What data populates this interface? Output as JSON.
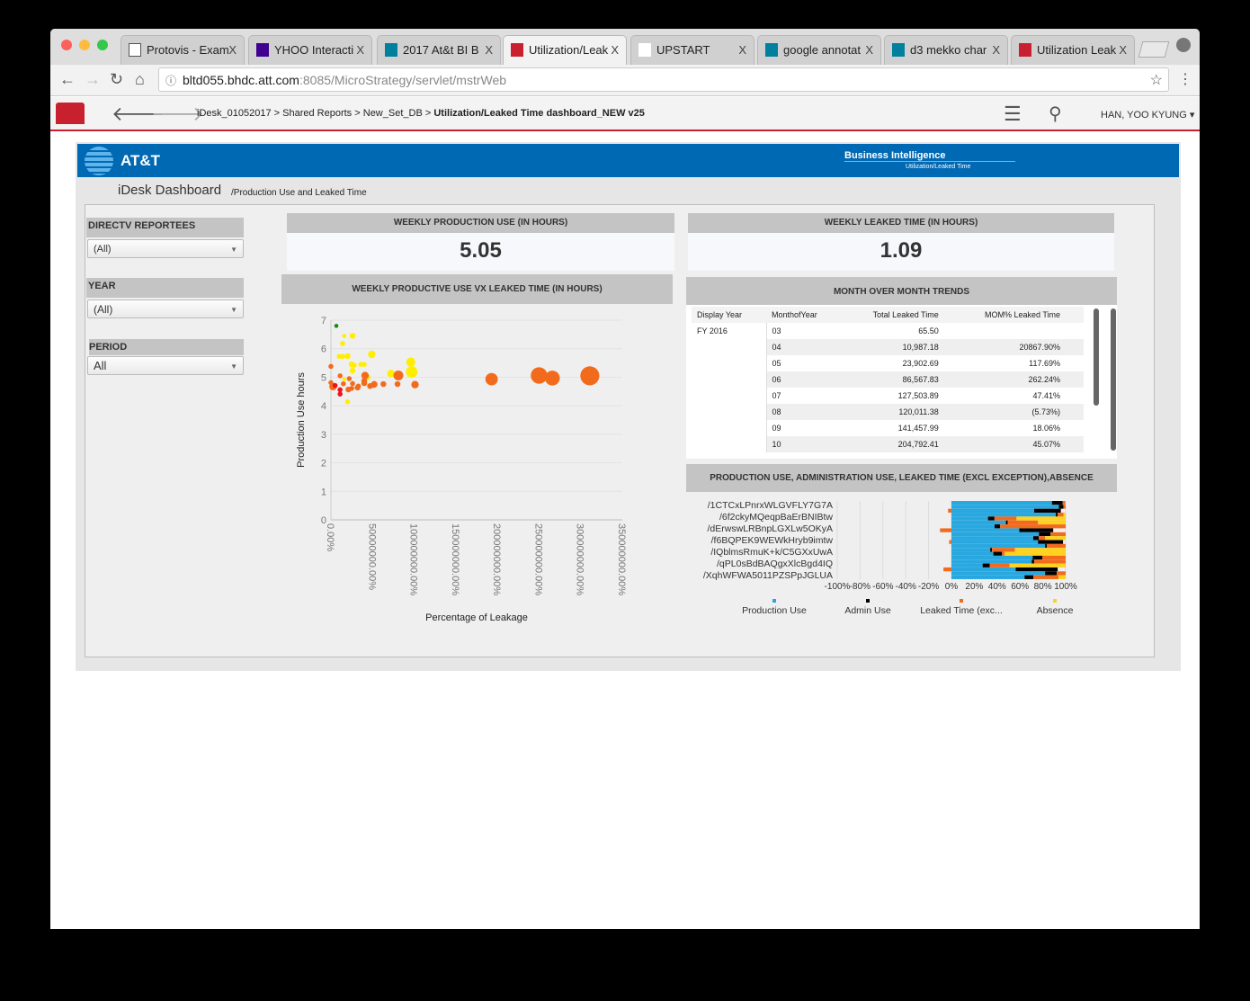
{
  "browser": {
    "tabs": [
      {
        "label": "Protovis - Exam",
        "icon": "page-icon",
        "active": false
      },
      {
        "label": "YHOO Interacti",
        "icon": "yahoo-icon",
        "active": false
      },
      {
        "label": "2017 At&t BI B",
        "icon": "bing-icon",
        "active": false
      },
      {
        "label": "Utilization/Leak",
        "icon": "microstrategy-icon",
        "active": true
      },
      {
        "label": "UPSTART",
        "icon": "upstart-icon",
        "active": false
      },
      {
        "label": "google annotat",
        "icon": "bing-icon",
        "active": false
      },
      {
        "label": "d3 mekko char",
        "icon": "bing-icon",
        "active": false
      },
      {
        "label": "Utilization Leak",
        "icon": "microstrategy-icon",
        "active": false
      }
    ],
    "close_glyph": "X",
    "url_host": "bltd055.bhdc.att.com",
    "url_rest": ":8085/MicroStrategy/servlet/mstrWeb"
  },
  "toolbar": {
    "breadcrumb": [
      "iDesk_01052017",
      "Shared Reports",
      "New_Set_DB"
    ],
    "separator": ">",
    "current": "Utilization/Leaked Time dashboard_NEW v25",
    "user": "HAN, YOO KYUNG"
  },
  "banner": {
    "brand": "AT&T",
    "title": "Business Intelligence",
    "subtitle": "Utilization/Leaked Time"
  },
  "page": {
    "title": "iDesk Dashboard",
    "subtitle": "/Production Use and Leaked Time"
  },
  "filters": [
    {
      "label": "DIRECTV REPORTEES",
      "value": "(All)"
    },
    {
      "label": "YEAR",
      "value": "(All)"
    },
    {
      "label": "PERIOD",
      "value": "All"
    }
  ],
  "kpis": [
    {
      "label": "WEEKLY PRODUCTION USE (IN HOURS)",
      "value": "5.05"
    },
    {
      "label": "WEEKLY LEAKED TIME (IN HOURS)",
      "value": "1.09"
    }
  ],
  "colors": {
    "production": "#29a8e0",
    "admin": "#000000",
    "leaked": "#f26b1d",
    "absence": "#ffd21f",
    "banner": "#0069b4",
    "accent": "#c8202f"
  },
  "trends": {
    "title": "MONTH OVER MONTH TRENDS",
    "columns": [
      "Display Year",
      "MonthofYear",
      "Total Leaked Time",
      "MOM% Leaked Time"
    ],
    "year": "FY 2016",
    "rows": [
      [
        "03",
        "65.50",
        ""
      ],
      [
        "04",
        "10,987.18",
        "20867.90%"
      ],
      [
        "05",
        "23,902.69",
        "117.69%"
      ],
      [
        "06",
        "86,567.83",
        "262.24%"
      ],
      [
        "07",
        "127,503.89",
        "47.41%"
      ],
      [
        "08",
        "120,011.38",
        "(5.73%)"
      ],
      [
        "09",
        "141,457.99",
        "18.06%"
      ],
      [
        "10",
        "204,792.41",
        "45.07%"
      ]
    ]
  },
  "chart_data": [
    {
      "type": "scatter",
      "title": "WEEKLY PRODUCTIVE USE VX LEAKED TIME (IN HOURS)",
      "xlabel": "Percentage of Leakage",
      "ylabel": "Production Use hours",
      "xlim": [
        0,
        350000000
      ],
      "ylim": [
        0,
        7
      ],
      "xticks": [
        "0.00%",
        "50000000.00%",
        "100000000.00%",
        "150000000.00%",
        "200000000.00%",
        "250000000.00%",
        "300000000.00%",
        "350000000.00%"
      ],
      "yticks": [
        "0",
        "1",
        "2",
        "3",
        "4",
        "5",
        "6",
        "7"
      ],
      "grid": true,
      "points": [
        {
          "x": 6500000,
          "y": 6.8,
          "size": 1,
          "color": "#1a8a1a"
        },
        {
          "x": 16000000,
          "y": 6.45,
          "size": 1,
          "color": "#ffee00"
        },
        {
          "x": 26000000,
          "y": 6.45,
          "size": 1.4,
          "color": "#ffee00"
        },
        {
          "x": 14000000,
          "y": 6.18,
          "size": 1.2,
          "color": "#ffee00"
        },
        {
          "x": 10000000,
          "y": 5.73,
          "size": 1.2,
          "color": "#ffee00"
        },
        {
          "x": 14000000,
          "y": 5.73,
          "size": 1.2,
          "color": "#ffee00"
        },
        {
          "x": 20000000,
          "y": 5.74,
          "size": 1.4,
          "color": "#ffee00"
        },
        {
          "x": 25000000,
          "y": 5.45,
          "size": 1.4,
          "color": "#ffee00"
        },
        {
          "x": 28000000,
          "y": 5.42,
          "size": 1.2,
          "color": "#ffee00"
        },
        {
          "x": 26000000,
          "y": 5.23,
          "size": 1.4,
          "color": "#ffee00"
        },
        {
          "x": 36000000,
          "y": 5.45,
          "size": 1.2,
          "color": "#ffee00"
        },
        {
          "x": 40000000,
          "y": 5.45,
          "size": 1.2,
          "color": "#ffee00"
        },
        {
          "x": 49000000,
          "y": 5.8,
          "size": 1.8,
          "color": "#ffee00"
        },
        {
          "x": 16000000,
          "y": 4.93,
          "size": 1,
          "color": "#ffee00"
        },
        {
          "x": 20000000,
          "y": 4.14,
          "size": 1.2,
          "color": "#ffee00"
        },
        {
          "x": 44000000,
          "y": 5.0,
          "size": 1.4,
          "color": "#ffee00"
        },
        {
          "x": 72000000,
          "y": 5.13,
          "size": 1.8,
          "color": "#ffee00"
        },
        {
          "x": 96000000,
          "y": 5.53,
          "size": 2.2,
          "color": "#ffee00"
        },
        {
          "x": 97000000,
          "y": 5.19,
          "size": 2.8,
          "color": "#ffee00"
        },
        {
          "x": 0,
          "y": 5.38,
          "size": 1.2,
          "color": "#f26b1d"
        },
        {
          "x": 0,
          "y": 4.81,
          "size": 1.2,
          "color": "#f26b1d"
        },
        {
          "x": 2500000,
          "y": 4.67,
          "size": 1.8,
          "color": "#f26b1d"
        },
        {
          "x": 11000000,
          "y": 5.05,
          "size": 1.2,
          "color": "#f26b1d"
        },
        {
          "x": 15000000,
          "y": 4.77,
          "size": 1.2,
          "color": "#f26b1d"
        },
        {
          "x": 22000000,
          "y": 4.95,
          "size": 1.2,
          "color": "#f26b1d"
        },
        {
          "x": 21000000,
          "y": 4.57,
          "size": 1.4,
          "color": "#f26b1d"
        },
        {
          "x": 25000000,
          "y": 4.61,
          "size": 1.2,
          "color": "#f26b1d"
        },
        {
          "x": 26000000,
          "y": 4.78,
          "size": 1.2,
          "color": "#f26b1d"
        },
        {
          "x": 32000000,
          "y": 4.64,
          "size": 1.4,
          "color": "#f26b1d"
        },
        {
          "x": 33000000,
          "y": 4.69,
          "size": 1.2,
          "color": "#f26b1d"
        },
        {
          "x": 41000000,
          "y": 5.06,
          "size": 1.8,
          "color": "#f26b1d"
        },
        {
          "x": 40000000,
          "y": 4.87,
          "size": 1.4,
          "color": "#f26b1d"
        },
        {
          "x": 40000000,
          "y": 4.79,
          "size": 1.4,
          "color": "#f26b1d"
        },
        {
          "x": 47000000,
          "y": 4.69,
          "size": 1.4,
          "color": "#f26b1d"
        },
        {
          "x": 51000000,
          "y": 4.73,
          "size": 1.4,
          "color": "#f26b1d"
        },
        {
          "x": 52000000,
          "y": 4.75,
          "size": 1.6,
          "color": "#f26b1d"
        },
        {
          "x": 63000000,
          "y": 4.76,
          "size": 1.4,
          "color": "#f26b1d"
        },
        {
          "x": 80000000,
          "y": 4.76,
          "size": 1.4,
          "color": "#f26b1d"
        },
        {
          "x": 81000000,
          "y": 5.06,
          "size": 2.4,
          "color": "#f26b1d"
        },
        {
          "x": 101000000,
          "y": 4.74,
          "size": 1.8,
          "color": "#f26b1d"
        },
        {
          "x": 193000000,
          "y": 4.93,
          "size": 3,
          "color": "#f26b1d"
        },
        {
          "x": 250000000,
          "y": 5.06,
          "size": 4,
          "color": "#f26b1d"
        },
        {
          "x": 266000000,
          "y": 4.97,
          "size": 3.6,
          "color": "#f26b1d"
        },
        {
          "x": 311000000,
          "y": 5.05,
          "size": 4.6,
          "color": "#f26b1d"
        },
        {
          "x": 5000000,
          "y": 4.71,
          "size": 1.2,
          "color": "#e8151b"
        },
        {
          "x": 11000000,
          "y": 4.56,
          "size": 1.2,
          "color": "#e8151b"
        },
        {
          "x": 11000000,
          "y": 4.41,
          "size": 1.2,
          "color": "#e8151b"
        }
      ]
    },
    {
      "type": "bar",
      "orientation": "horizontal-stacked-percent",
      "title": "PRODUCTION USE, ADMINISTRATION USE, LEAKED TIME (EXCL EXCEPTION),ABSENCE",
      "category_labels": [
        "/1CTCxLPnrxWLGVFLY7G7A",
        "/6f2ckyMQeqpBaErBNIBtw",
        "/dErwswLRBnpLGXLw5OKyA",
        "/f6BQPEK9WEWkHryb9imtw",
        "/IQblmsRmuK+k/C5GXxUwA",
        "/qPL0sBdBAQgxXlcBgd4IQ",
        "/XqhWFWA5011PZSPpJGLUA"
      ],
      "xlim": [
        -100,
        100
      ],
      "xticks": [
        "-100%",
        "-80%",
        "-60%",
        "-40%",
        "-20%",
        "0%",
        "20%",
        "40%",
        "60%",
        "80%",
        "100%"
      ],
      "legend_position": "bottom",
      "series": [
        {
          "name": "Production Use",
          "values": [
            88,
            94,
            72.4,
            91.4,
            32,
            47.7,
            37.8,
            59.4,
            76.6,
            71.6,
            75.8,
            82,
            33.9,
            36.7,
            71.1,
            70.3,
            27.3,
            56.3,
            82,
            64
          ]
        },
        {
          "name": "Admin Use",
          "values": [
            9.4,
            4,
            23.4,
            1.6,
            5.7,
            1.6,
            4.7,
            29.7,
            10.2,
            5,
            21.9,
            1.6,
            1.6,
            7.6,
            8.6,
            2.1,
            6.3,
            36.7,
            10.2,
            7.8
          ]
        },
        {
          "name": "Leaked Time (exc...",
          "values": [
            2.3,
            2,
            -3,
            5.2,
            19.3,
            26.5,
            57.5,
            -10,
            13.2,
            5.5,
            -2,
            16.4,
            20,
            2.3,
            20.3,
            27.6,
            17.2,
            -7,
            7.8,
            21.9
          ]
        },
        {
          "name": "Absence",
          "values": [
            0,
            0,
            0,
            1.8,
            43,
            24.2,
            0,
            0,
            0,
            17.9,
            0,
            0,
            44.5,
            53.4,
            0,
            0,
            49.2,
            0,
            0,
            6.3
          ]
        }
      ]
    }
  ]
}
